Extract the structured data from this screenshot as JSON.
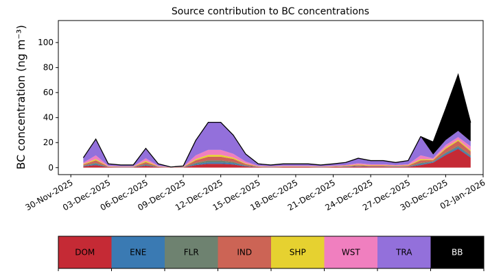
{
  "chart_data": {
    "type": "stacked_area",
    "title": "Source contribution to BC concentrations",
    "y_label": "BC concentration (ng m⁻³)",
    "x": [
      "2025-12-01",
      "2025-12-02",
      "2025-12-03",
      "2025-12-04",
      "2025-12-05",
      "2025-12-06",
      "2025-12-07",
      "2025-12-08",
      "2025-12-09",
      "2025-12-10",
      "2025-12-11",
      "2025-12-12",
      "2025-12-13",
      "2025-12-14",
      "2025-12-15",
      "2025-12-16",
      "2025-12-17",
      "2025-12-18",
      "2025-12-19",
      "2025-12-20",
      "2025-12-21",
      "2025-12-22",
      "2025-12-23",
      "2025-12-24",
      "2025-12-25",
      "2025-12-26",
      "2025-12-27",
      "2025-12-28",
      "2025-12-29",
      "2025-12-30",
      "2025-12-31",
      "2026-01-01"
    ],
    "series": [
      {
        "name": "DOM",
        "color": "#c52a35",
        "values": [
          1,
          2,
          0.4,
          0.3,
          0.3,
          1.5,
          0.4,
          0.1,
          0.2,
          2,
          3,
          3,
          2.5,
          1,
          0.4,
          0.3,
          0.4,
          0.4,
          0.4,
          0.3,
          0.4,
          0.5,
          0.8,
          0.6,
          0.6,
          0.5,
          0.6,
          2,
          4,
          10,
          15,
          8
        ]
      },
      {
        "name": "ENE",
        "color": "#3a7ab3",
        "values": [
          0.3,
          0.8,
          0.1,
          0.1,
          0.1,
          0.6,
          0.1,
          0,
          0.1,
          0.8,
          1.2,
          1.2,
          1,
          0.4,
          0.1,
          0.1,
          0.1,
          0.1,
          0.1,
          0.1,
          0.1,
          0.2,
          0.3,
          0.2,
          0.2,
          0.2,
          0.2,
          0.8,
          0.5,
          1,
          1.2,
          1
        ]
      },
      {
        "name": "FLR",
        "color": "#6e8270",
        "values": [
          0.3,
          1,
          0.1,
          0.1,
          0.1,
          0.8,
          0.1,
          0,
          0.1,
          1,
          1.5,
          1.5,
          1,
          0.4,
          0.1,
          0.1,
          0.1,
          0.1,
          0.1,
          0.1,
          0.1,
          0.2,
          0.3,
          0.2,
          0.2,
          0.2,
          0.2,
          1,
          0.5,
          1,
          1.2,
          1
        ]
      },
      {
        "name": "IND",
        "color": "#cc6455",
        "values": [
          0.8,
          2,
          0.3,
          0.2,
          0.2,
          1.5,
          0.3,
          0.1,
          0.1,
          2,
          3,
          3,
          2.5,
          1,
          0.3,
          0.2,
          0.3,
          0.3,
          0.3,
          0.2,
          0.3,
          0.4,
          0.6,
          0.5,
          0.5,
          0.4,
          0.5,
          2,
          1,
          3,
          4,
          3
        ]
      },
      {
        "name": "SHP",
        "color": "#e6d130",
        "values": [
          0.5,
          1,
          0.2,
          0.1,
          0.1,
          1,
          0.2,
          0,
          0.1,
          1,
          1.5,
          1.5,
          1,
          0.5,
          0.2,
          0.1,
          0.2,
          0.2,
          0.2,
          0.1,
          0.2,
          0.3,
          0.5,
          0.4,
          0.4,
          0.3,
          0.4,
          1,
          0.5,
          1,
          1,
          1
        ]
      },
      {
        "name": "WST",
        "color": "#f07fbf",
        "values": [
          1,
          3,
          0.4,
          0.3,
          0.3,
          2,
          0.4,
          0.1,
          0.2,
          3,
          4,
          4,
          3,
          1.5,
          0.4,
          0.3,
          0.4,
          0.4,
          0.4,
          0.3,
          0.4,
          0.5,
          1,
          0.7,
          0.7,
          0.5,
          0.7,
          3,
          1,
          2,
          2,
          3
        ]
      },
      {
        "name": "TRA",
        "color": "#9370db",
        "values": [
          4,
          13,
          1.5,
          1,
          1,
          8,
          1.5,
          0.2,
          0.5,
          12,
          22,
          22,
          15,
          6,
          1.5,
          1,
          1.5,
          1.5,
          1.5,
          1,
          1.5,
          2,
          4,
          3,
          3,
          2,
          3,
          15,
          3,
          4,
          5,
          4
        ]
      },
      {
        "name": "BB",
        "color": "#000000",
        "values": [
          0,
          0,
          0,
          0,
          0,
          0,
          0,
          0,
          0,
          0,
          0,
          0,
          0,
          0,
          0,
          0,
          0,
          0,
          0,
          0,
          0,
          0,
          0,
          0,
          0,
          0,
          0,
          0,
          10,
          25,
          45,
          15
        ]
      }
    ],
    "xlim": [
      "2025-11-29",
      "2026-01-02"
    ],
    "xticks": [
      {
        "value": "2025-11-30",
        "label": "30-Nov-2025"
      },
      {
        "value": "2025-12-03",
        "label": "03-Dec-2025"
      },
      {
        "value": "2025-12-06",
        "label": "06-Dec-2025"
      },
      {
        "value": "2025-12-09",
        "label": "09-Dec-2025"
      },
      {
        "value": "2025-12-12",
        "label": "12-Dec-2025"
      },
      {
        "value": "2025-12-15",
        "label": "15-Dec-2025"
      },
      {
        "value": "2025-12-18",
        "label": "18-Dec-2025"
      },
      {
        "value": "2025-12-21",
        "label": "21-Dec-2025"
      },
      {
        "value": "2025-12-24",
        "label": "24-Dec-2025"
      },
      {
        "value": "2025-12-27",
        "label": "27-Dec-2025"
      },
      {
        "value": "2025-12-30",
        "label": "30-Dec-2025"
      },
      {
        "value": "2026-01-02",
        "label": "02-Jan-2026"
      }
    ],
    "ylim": [
      -5.6,
      117.6
    ],
    "yticks": [
      0,
      20,
      40,
      60,
      80,
      100
    ]
  }
}
